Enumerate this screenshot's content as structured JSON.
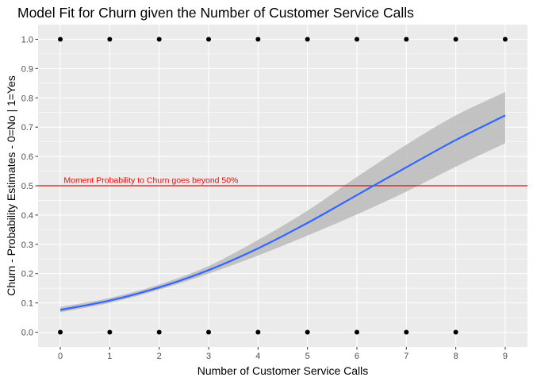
{
  "chart_data": {
    "type": "scatter",
    "title": "Model Fit for Churn given the Number of Customer Service Calls",
    "xlabel": "Number of Customer Service Calls",
    "ylabel": "Churn - Probability Estimates - 0=No | 1=Yes",
    "xlim": [
      -0.45,
      9.45
    ],
    "ylim": [
      -0.05,
      1.05
    ],
    "x_ticks": [
      "0",
      "1",
      "2",
      "3",
      "4",
      "5",
      "6",
      "7",
      "8",
      "9"
    ],
    "y_ticks": [
      "0.0",
      "0.1",
      "0.2",
      "0.3",
      "0.4",
      "0.5",
      "0.6",
      "0.7",
      "0.8",
      "0.9",
      "1.0"
    ],
    "grid": true,
    "points": [
      {
        "x": 0,
        "y": 0
      },
      {
        "x": 1,
        "y": 0
      },
      {
        "x": 2,
        "y": 0
      },
      {
        "x": 3,
        "y": 0
      },
      {
        "x": 4,
        "y": 0
      },
      {
        "x": 5,
        "y": 0
      },
      {
        "x": 6,
        "y": 0
      },
      {
        "x": 7,
        "y": 0
      },
      {
        "x": 8,
        "y": 0
      },
      {
        "x": 0,
        "y": 1
      },
      {
        "x": 1,
        "y": 1
      },
      {
        "x": 2,
        "y": 1
      },
      {
        "x": 3,
        "y": 1
      },
      {
        "x": 4,
        "y": 1
      },
      {
        "x": 5,
        "y": 1
      },
      {
        "x": 6,
        "y": 1
      },
      {
        "x": 7,
        "y": 1
      },
      {
        "x": 8,
        "y": 1
      },
      {
        "x": 9,
        "y": 1
      }
    ],
    "fit": {
      "x": [
        0,
        1,
        2,
        3,
        4,
        5,
        6,
        7,
        8,
        9
      ],
      "y": [
        0.076,
        0.108,
        0.153,
        0.212,
        0.286,
        0.373,
        0.468,
        0.563,
        0.656,
        0.74
      ],
      "lower": [
        0.068,
        0.1,
        0.145,
        0.2,
        0.262,
        0.33,
        0.402,
        0.48,
        0.565,
        0.645
      ],
      "upper": [
        0.086,
        0.117,
        0.163,
        0.226,
        0.315,
        0.415,
        0.53,
        0.64,
        0.74,
        0.82
      ],
      "color": "#3366FF",
      "band_color": "#BEBEBE"
    },
    "hline": {
      "y": 0.5,
      "color": "#FF0000",
      "label": "Moment Probability to Churn goes beyond 50%",
      "label_x": 0.07
    },
    "colors": {
      "panel": "#EBEBEB",
      "grid": "#FFFFFF",
      "points": "#000000"
    }
  }
}
